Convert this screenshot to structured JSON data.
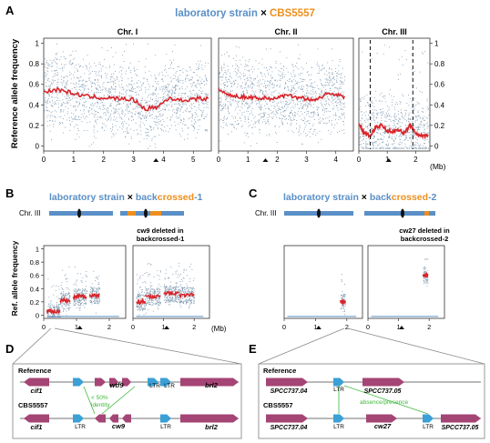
{
  "figure": {
    "panel_letters": [
      "A",
      "B",
      "C",
      "D",
      "E"
    ],
    "colors": {
      "blue": "#5a8fc7",
      "orange": "#ef8f1c",
      "red": "#d9252b",
      "dots": "#7f99b0",
      "gene": "#a54575",
      "ltr": "#3aa0d6",
      "green": "#3db83a",
      "box": "#888888"
    },
    "panelA": {
      "title_left": "laboratory strain",
      "title_x": "×",
      "title_right": "CBS5557",
      "ylabel": "Reference allele frequency",
      "unit": "(Mb)"
    },
    "panelB": {
      "title_left": "laboratory strain",
      "title_x": "×",
      "title_b1": "back",
      "title_b2": "crossed",
      "title_b3": "-1",
      "chr_label": "Chr. III",
      "note_line1": "cw9 deleted in",
      "note_line2": "backcrossed-1",
      "ylabel": "Ref. allele frequency",
      "unit": "(Mb)"
    },
    "panelC": {
      "title_left": "laboratory strain",
      "title_x": "×",
      "title_b1": "back",
      "title_b2": "crossed",
      "title_b3": "-2",
      "chr_label": "Chr. III",
      "note_line1": "cw27 deleted in",
      "note_line2": "backcrossed-2"
    },
    "panelD": {
      "reference_label": "Reference",
      "strain_label": "CBS5557",
      "ref_genes": [
        "cif1",
        "wtf9",
        "brl2"
      ],
      "ltr_label": "LTR",
      "strain_genes": [
        "cif1",
        "cw9",
        "brl2"
      ],
      "identity_line1": "< 50%",
      "identity_line2": "identity"
    },
    "panelE": {
      "reference_label": "Reference",
      "strain_label": "CBS5557",
      "ref_genes": [
        "SPCC737.04",
        "SPCC737.05"
      ],
      "ltr_label": "LTR",
      "strain_genes": [
        "SPCC737.04",
        "cw27",
        "SPCC737.05"
      ],
      "presence_label": "absence/presence"
    }
  },
  "chart_data": [
    {
      "type": "scatter",
      "panel": "A",
      "title": "laboratory strain × CBS5557",
      "ylabel": "Reference allele frequency",
      "ylim": [
        -0.05,
        1.05
      ],
      "yticks": [
        0,
        0.2,
        0.4,
        0.6,
        0.8,
        1
      ],
      "grid": false,
      "subplots": [
        {
          "name": "Chr. I",
          "xlim": [
            0,
            5.6
          ],
          "xticks": [
            0,
            1,
            2,
            3,
            4,
            5
          ],
          "trend_x": [
            0,
            0.5,
            1,
            1.5,
            2,
            2.5,
            3,
            3.4,
            3.8,
            4.2,
            4.6,
            5.0,
            5.5
          ],
          "trend_y": [
            0.53,
            0.55,
            0.51,
            0.48,
            0.47,
            0.46,
            0.45,
            0.36,
            0.38,
            0.47,
            0.44,
            0.46,
            0.46
          ],
          "marker": 3.75
        },
        {
          "name": "Chr. II",
          "xlim": [
            0,
            4.6
          ],
          "xticks": [
            0,
            1,
            2,
            3,
            4
          ],
          "trend_x": [
            0,
            0.3,
            0.8,
            1.3,
            1.8,
            2.3,
            2.8,
            3.3,
            3.8,
            4.3
          ],
          "trend_y": [
            0.55,
            0.5,
            0.48,
            0.47,
            0.46,
            0.49,
            0.47,
            0.45,
            0.52,
            0.47
          ],
          "marker": 1.6
        },
        {
          "name": "Chr. III",
          "xlim": [
            0,
            2.5
          ],
          "xticks": [
            0,
            1,
            2
          ],
          "trend_x": [
            0,
            0.2,
            0.4,
            0.6,
            0.8,
            1.0,
            1.2,
            1.4,
            1.6,
            1.8,
            2.0,
            2.2,
            2.45
          ],
          "trend_y": [
            0.22,
            0.12,
            0.1,
            0.18,
            0.2,
            0.15,
            0.14,
            0.15,
            0.13,
            0.2,
            0.12,
            0.1,
            0.1
          ],
          "marker": 1.05,
          "dashed_x": [
            0.4,
            1.9
          ]
        }
      ],
      "unit": "(Mb)"
    },
    {
      "type": "scatter",
      "panel": "B",
      "ylabel": "Ref. allele frequency",
      "ylim": [
        -0.05,
        1.05
      ],
      "yticks": [
        0,
        0.2,
        0.4,
        0.6,
        0.8,
        1
      ],
      "subplots": [
        {
          "name": "",
          "xlim": [
            0,
            2.5
          ],
          "xticks": [
            0,
            1,
            2
          ],
          "segments": [
            [
              0.1,
              0.5,
              0.05
            ],
            [
              0.5,
              0.8,
              0.22
            ],
            [
              0.9,
              1.3,
              0.28
            ],
            [
              1.4,
              1.7,
              0.3
            ]
          ],
          "marker": 1.1
        },
        {
          "name": "cw9 deleted in backcrossed-1",
          "xlim": [
            0,
            2.5
          ],
          "xticks": [
            0,
            1,
            2
          ],
          "segments": [
            [
              0.1,
              0.4,
              0.2
            ],
            [
              0.4,
              0.9,
              0.28
            ],
            [
              1.0,
              1.5,
              0.32
            ],
            [
              1.5,
              2.0,
              0.3
            ]
          ],
          "marker": 1.1
        }
      ],
      "unit": "(Mb)"
    },
    {
      "type": "scatter",
      "panel": "C",
      "ylim": [
        -0.05,
        1.05
      ],
      "yticks": [
        0,
        0.2,
        0.4,
        0.6,
        0.8,
        1
      ],
      "subplots": [
        {
          "name": "",
          "xlim": [
            0,
            2.5
          ],
          "xticks": [
            0,
            1,
            2
          ],
          "segments": [
            [
              1.8,
              1.95,
              0.2
            ]
          ],
          "marker": 1.1
        },
        {
          "name": "cw27 deleted in backcrossed-2",
          "xlim": [
            0,
            2.5
          ],
          "xticks": [
            0,
            1,
            2
          ],
          "segments": [
            [
              1.8,
              1.95,
              0.6
            ]
          ],
          "marker": 1.1
        }
      ],
      "unit": "(Mb)"
    }
  ]
}
